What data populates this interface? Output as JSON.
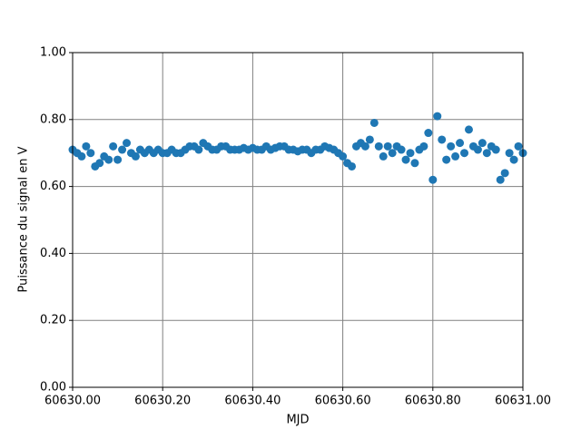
{
  "chart_data": {
    "type": "scatter",
    "xlabel": "MJD",
    "ylabel": "Puissance du signal en V",
    "color": "#1f77b4",
    "grid": true,
    "grid_color": "#808080",
    "xlim": [
      60630,
      60631
    ],
    "ylim": [
      0,
      1
    ],
    "xticks": [
      {
        "value": 60630,
        "label": "60630.00"
      },
      {
        "value": 60630.2,
        "label": "60630.20"
      },
      {
        "value": 60630.4,
        "label": "60630.40"
      },
      {
        "value": 60630.6,
        "label": "60630.60"
      },
      {
        "value": 60630.8,
        "label": "60630.80"
      },
      {
        "value": 60631,
        "label": "60631.00"
      }
    ],
    "yticks": [
      {
        "value": 0,
        "label": "0.00"
      },
      {
        "value": 0.2,
        "label": "0.20"
      },
      {
        "value": 0.4,
        "label": "0.40"
      },
      {
        "value": 0.6,
        "label": "0.60"
      },
      {
        "value": 0.8,
        "label": "0.80"
      },
      {
        "value": 1,
        "label": "1.00"
      }
    ],
    "x": [
      60630.0,
      60630.01,
      60630.02,
      60630.03,
      60630.04,
      60630.05,
      60630.06,
      60630.07,
      60630.08,
      60630.09,
      60630.1,
      60630.11,
      60630.12,
      60630.13,
      60630.14,
      60630.15,
      60630.16,
      60630.17,
      60630.18,
      60630.19,
      60630.2,
      60630.21,
      60630.22,
      60630.23,
      60630.24,
      60630.25,
      60630.26,
      60630.27,
      60630.28,
      60630.29,
      60630.3,
      60630.31,
      60630.32,
      60630.33,
      60630.34,
      60630.35,
      60630.36,
      60630.37,
      60630.38,
      60630.39,
      60630.4,
      60630.41,
      60630.42,
      60630.43,
      60630.44,
      60630.45,
      60630.46,
      60630.47,
      60630.48,
      60630.49,
      60630.5,
      60630.51,
      60630.52,
      60630.53,
      60630.54,
      60630.55,
      60630.56,
      60630.57,
      60630.58,
      60630.59,
      60630.6,
      60630.61,
      60630.62,
      60630.63,
      60630.64,
      60630.65,
      60630.66,
      60630.67,
      60630.68,
      60630.69,
      60630.7,
      60630.71,
      60630.72,
      60630.73,
      60630.74,
      60630.75,
      60630.76,
      60630.77,
      60630.78,
      60630.79,
      60630.8,
      60630.81,
      60630.82,
      60630.83,
      60630.84,
      60630.85,
      60630.86,
      60630.87,
      60630.88,
      60630.89,
      60630.9,
      60630.91,
      60630.92,
      60630.93,
      60630.94,
      60630.95,
      60630.96,
      60630.97,
      60630.98,
      60630.99,
      60631.0
    ],
    "values": [
      0.71,
      0.7,
      0.69,
      0.72,
      0.7,
      0.66,
      0.67,
      0.69,
      0.68,
      0.72,
      0.68,
      0.71,
      0.73,
      0.7,
      0.69,
      0.71,
      0.7,
      0.71,
      0.7,
      0.71,
      0.7,
      0.7,
      0.71,
      0.7,
      0.7,
      0.71,
      0.72,
      0.72,
      0.71,
      0.73,
      0.72,
      0.71,
      0.71,
      0.72,
      0.72,
      0.71,
      0.71,
      0.71,
      0.715,
      0.71,
      0.715,
      0.71,
      0.71,
      0.72,
      0.71,
      0.715,
      0.72,
      0.72,
      0.71,
      0.71,
      0.705,
      0.71,
      0.71,
      0.7,
      0.71,
      0.71,
      0.72,
      0.715,
      0.71,
      0.7,
      0.69,
      0.67,
      0.66,
      0.72,
      0.73,
      0.72,
      0.74,
      0.79,
      0.72,
      0.69,
      0.72,
      0.7,
      0.72,
      0.71,
      0.68,
      0.7,
      0.67,
      0.71,
      0.72,
      0.76,
      0.62,
      0.81,
      0.74,
      0.68,
      0.72,
      0.69,
      0.73,
      0.7,
      0.77,
      0.72,
      0.71,
      0.73,
      0.7,
      0.72,
      0.71,
      0.62,
      0.64,
      0.7,
      0.68,
      0.72,
      0.7
    ]
  }
}
